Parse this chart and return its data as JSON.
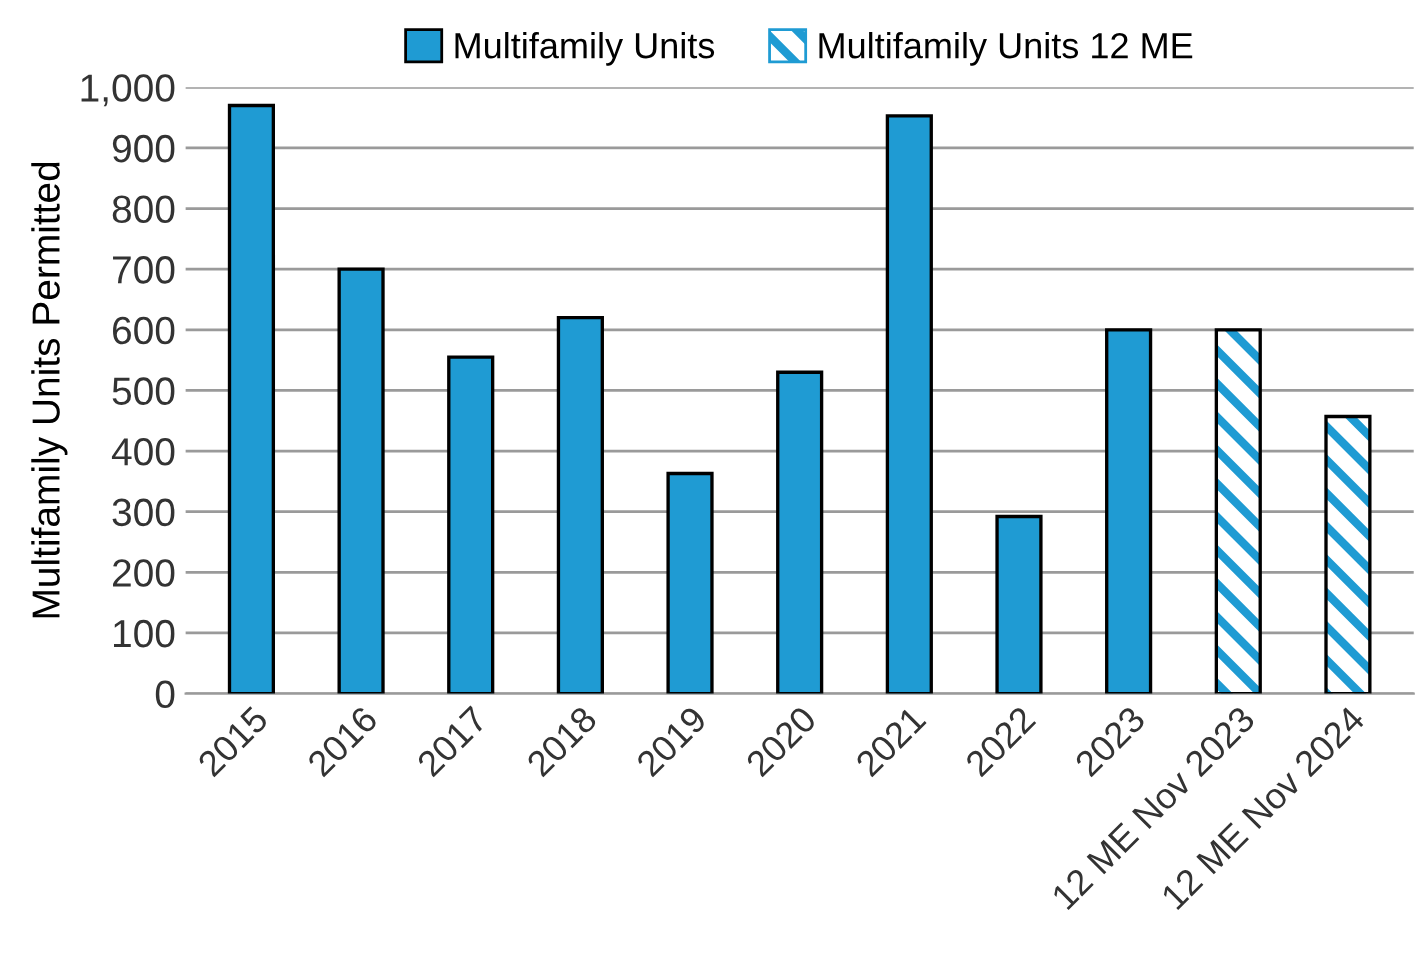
{
  "chart_data": {
    "type": "bar",
    "ylabel": "Multifamily Units Permitted",
    "categories": [
      "2015",
      "2016",
      "2017",
      "2018",
      "2019",
      "2020",
      "2021",
      "2022",
      "2023",
      "12 ME Nov 2023",
      "12 ME Nov 2024"
    ],
    "series": [
      {
        "name": "Multifamily Units",
        "color": "#1f9bd3",
        "values": [
          970,
          700,
          555,
          620,
          363,
          530,
          953,
          292,
          600,
          null,
          null
        ]
      },
      {
        "name": "Multifamily Units 12 ME",
        "color": "#1f9bd3",
        "values": [
          null,
          null,
          null,
          null,
          null,
          null,
          null,
          null,
          null,
          600,
          457
        ]
      }
    ],
    "ylim": [
      0,
      1000
    ],
    "yticks": [
      0,
      100,
      200,
      300,
      400,
      500,
      600,
      700,
      800,
      900,
      {
        "value": 1000,
        "label": "1,000"
      }
    ],
    "grid": "y",
    "legend": "top"
  }
}
